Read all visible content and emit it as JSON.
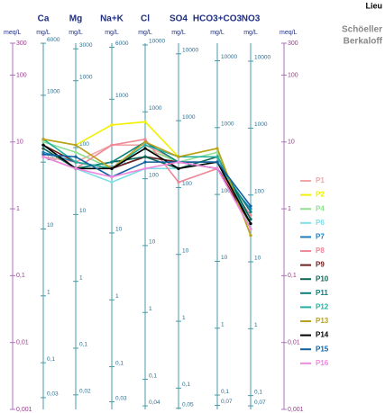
{
  "chart_data": {
    "type": "line",
    "title": "Lieu",
    "subtitle": [
      "Schöeller",
      "Berkaloff"
    ],
    "categories": [
      "Ca",
      "Mg",
      "Na+K",
      "Cl",
      "SO4",
      "HCO3+CO3",
      "NO3"
    ],
    "y_unit": "meq/L",
    "column_unit": "mg/L",
    "log_scale": true,
    "ylim": [
      0.001,
      300
    ],
    "yticks": [
      300,
      100,
      10,
      1,
      {
        "value": 0.1,
        "label": "0,1"
      },
      {
        "value": 0.01,
        "label": "0,01"
      },
      {
        "value": 0.001,
        "label": "0,001"
      }
    ],
    "column_ticks": [
      [
        {
          "value": 299.4,
          "label": "6000"
        },
        {
          "value": 49.9,
          "label": "1000"
        },
        {
          "value": 4.99,
          "label": "100"
        },
        {
          "value": 0.499,
          "label": "10"
        },
        {
          "value": 0.0499,
          "label": "1"
        },
        {
          "value": 0.00499,
          "label": "0,1"
        },
        {
          "value": 0.0015,
          "label": "0,03"
        }
      ],
      [
        {
          "value": 246.9,
          "label": "3000"
        },
        {
          "value": 82.3,
          "label": "1000"
        },
        {
          "value": 8.23,
          "label": "100"
        },
        {
          "value": 0.823,
          "label": "10"
        },
        {
          "value": 0.0823,
          "label": "1"
        },
        {
          "value": 0.00823,
          "label": "0,1"
        },
        {
          "value": 0.00165,
          "label": "0,02"
        }
      ],
      [
        {
          "value": 260.9,
          "label": "6000"
        },
        {
          "value": 43.5,
          "label": "1000"
        },
        {
          "value": 4.35,
          "label": "100"
        },
        {
          "value": 0.435,
          "label": "10"
        },
        {
          "value": 0.0435,
          "label": "1"
        },
        {
          "value": 0.00435,
          "label": "0,1"
        },
        {
          "value": 0.0013,
          "label": "0,03"
        }
      ],
      [
        {
          "value": 282,
          "label": "10000"
        },
        {
          "value": 28.2,
          "label": "1000"
        },
        {
          "value": 2.82,
          "label": "100"
        },
        {
          "value": 0.282,
          "label": "10"
        },
        {
          "value": 0.0282,
          "label": "1"
        },
        {
          "value": 0.00282,
          "label": "0,1"
        },
        {
          "value": 0.00113,
          "label": "0,04"
        }
      ],
      [
        {
          "value": 208.2,
          "label": "10000"
        },
        {
          "value": 20.8,
          "label": "1000"
        },
        {
          "value": 2.08,
          "label": "100"
        },
        {
          "value": 0.208,
          "label": "10"
        },
        {
          "value": 0.0208,
          "label": "1"
        },
        {
          "value": 0.00208,
          "label": "0,1"
        },
        {
          "value": 0.00104,
          "label": "0,05"
        }
      ],
      [
        {
          "value": 163.9,
          "label": "10000"
        },
        {
          "value": 16.4,
          "label": "1000"
        },
        {
          "value": 1.64,
          "label": "100"
        },
        {
          "value": 0.164,
          "label": "10"
        },
        {
          "value": 0.0164,
          "label": "1"
        },
        {
          "value": 0.00164,
          "label": "0,1"
        },
        {
          "value": 0.00115,
          "label": "0,07"
        }
      ],
      [
        {
          "value": 161.3,
          "label": "10000"
        },
        {
          "value": 16.1,
          "label": "1000"
        },
        {
          "value": 1.61,
          "label": "100"
        },
        {
          "value": 0.161,
          "label": "10"
        },
        {
          "value": 0.0161,
          "label": "1"
        },
        {
          "value": 0.00161,
          "label": "0,1"
        },
        {
          "value": 0.00113,
          "label": "0,07"
        }
      ]
    ],
    "series": [
      {
        "name": "P1",
        "color": "#f2a7a7",
        "values": [
          6,
          5,
          9,
          9,
          5,
          5,
          0.5
        ]
      },
      {
        "name": "P2",
        "color": "#f0f000",
        "values": [
          11,
          9,
          18,
          20,
          6,
          8,
          0.4
        ]
      },
      {
        "name": "P4",
        "color": "#8fe08f",
        "values": [
          10,
          7,
          4,
          8,
          5,
          7,
          0.5
        ]
      },
      {
        "name": "P6",
        "color": "#7fdde6",
        "values": [
          6,
          4,
          2.5,
          4,
          4,
          5,
          0.7
        ]
      },
      {
        "name": "P7",
        "color": "#1a7fc0",
        "values": [
          7,
          5,
          4,
          6,
          5,
          4,
          1.0
        ]
      },
      {
        "name": "P8",
        "color": "#f08898",
        "values": [
          6,
          4,
          9,
          11,
          2.5,
          4,
          0.8
        ]
      },
      {
        "name": "P9",
        "color": "#6b1f1f",
        "values": [
          9,
          5,
          4,
          6,
          5,
          4,
          0.6
        ]
      },
      {
        "name": "P10",
        "color": "#0d6655",
        "values": [
          8,
          4,
          5,
          6,
          4,
          6,
          0.7
        ]
      },
      {
        "name": "P11",
        "color": "#0a807a",
        "values": [
          9,
          4,
          5,
          10,
          5,
          5,
          0.9
        ]
      },
      {
        "name": "P12",
        "color": "#22b0a0",
        "values": [
          11,
          5,
          4,
          9,
          6,
          6,
          0.6
        ]
      },
      {
        "name": "P13",
        "color": "#b8a020",
        "values": [
          11,
          9,
          4,
          10,
          6,
          8,
          0.4
        ]
      },
      {
        "name": "P14",
        "color": "#000000",
        "values": [
          9,
          4,
          4,
          8,
          4,
          5,
          0.6
        ]
      },
      {
        "name": "P15",
        "color": "#11609f",
        "values": [
          6.5,
          6,
          3,
          5,
          5,
          5,
          1.1
        ]
      },
      {
        "name": "P16",
        "color": "#f088e0",
        "values": [
          6,
          4,
          3,
          4,
          5,
          4,
          0.5
        ]
      }
    ]
  }
}
